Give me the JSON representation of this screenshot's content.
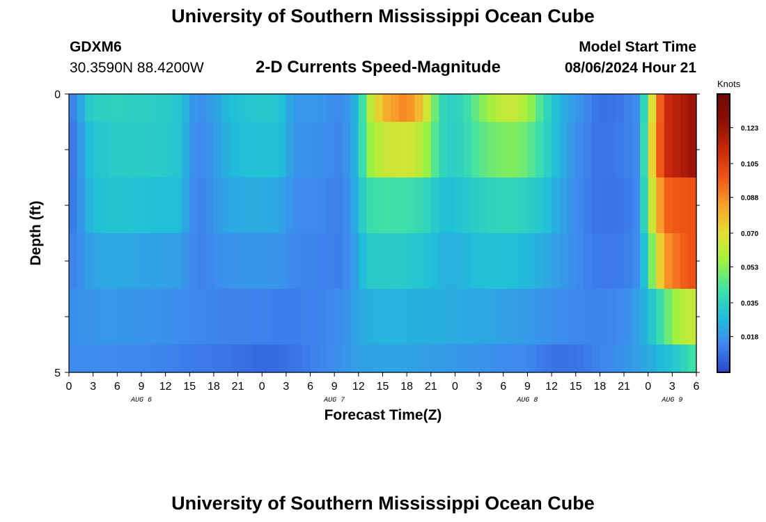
{
  "header": {
    "title": "University of Southern Mississippi Ocean Cube",
    "station": "GDXM6",
    "coordinates": "30.3590N  88.4200W",
    "subtitle": "2-D Currents Speed-Magnitude",
    "model_start_label": "Model Start Time",
    "model_start_value": "08/06/2024 Hour 21"
  },
  "footer": {
    "title": "University of Southern Mississippi Ocean Cube"
  },
  "colorbar": {
    "unit": "Knots",
    "ticks": [
      "0.123",
      "0.105",
      "0.088",
      "0.070",
      "0.053",
      "0.035",
      "0.018"
    ],
    "colors": [
      "#2b45c9",
      "#3f88ef",
      "#1fc0d8",
      "#40e1a6",
      "#9ff23e",
      "#e3df34",
      "#f9a32b",
      "#ef5416",
      "#c92a0b",
      "#8d0f05",
      "#6a0a05"
    ]
  },
  "chart_data": {
    "type": "heatmap",
    "title": "2-D Currents Speed-Magnitude",
    "xlabel": "Forecast Time(Z)",
    "ylabel": "Depth (ft)",
    "y_ticks": [
      "0",
      "5"
    ],
    "ylim": [
      0,
      5
    ],
    "x_tick_labels": [
      "0",
      "3",
      "6",
      "9",
      "12",
      "15",
      "18",
      "21",
      "0",
      "3",
      "6",
      "9",
      "12",
      "15",
      "18",
      "21",
      "0",
      "3",
      "6",
      "9",
      "12",
      "15",
      "18",
      "21",
      "0",
      "3",
      "6"
    ],
    "date_labels": [
      {
        "text": "AUG 6",
        "hour": 9
      },
      {
        "text": "AUG 7",
        "hour": 33
      },
      {
        "text": "AUG 8",
        "hour": 57
      },
      {
        "text": "AUG 9",
        "hour": 75
      }
    ],
    "hours_start": 0,
    "hours_end": 78,
    "value_range": [
      0.0,
      0.14
    ],
    "depth_layers": [
      {
        "depth_ft": 0.25,
        "points": [
          [
            0,
            0.012
          ],
          [
            1,
            0.014
          ],
          [
            2,
            0.03
          ],
          [
            3,
            0.034
          ],
          [
            6,
            0.035
          ],
          [
            9,
            0.034
          ],
          [
            12,
            0.033
          ],
          [
            14,
            0.03
          ],
          [
            15,
            0.02
          ],
          [
            16,
            0.015
          ],
          [
            17,
            0.017
          ],
          [
            19,
            0.023
          ],
          [
            20,
            0.028
          ],
          [
            23,
            0.031
          ],
          [
            26,
            0.031
          ],
          [
            27,
            0.025
          ],
          [
            28,
            0.018
          ],
          [
            31,
            0.018
          ],
          [
            34,
            0.014
          ],
          [
            36,
            0.028
          ],
          [
            37,
            0.055
          ],
          [
            39,
            0.08
          ],
          [
            42,
            0.09
          ],
          [
            44,
            0.075
          ],
          [
            46,
            0.04
          ],
          [
            47,
            0.034
          ],
          [
            49,
            0.037
          ],
          [
            51,
            0.05
          ],
          [
            53,
            0.06
          ],
          [
            55,
            0.065
          ],
          [
            57,
            0.058
          ],
          [
            59,
            0.04
          ],
          [
            61,
            0.025
          ],
          [
            63,
            0.018
          ],
          [
            65,
            0.012
          ],
          [
            66,
            0.009
          ],
          [
            68,
            0.01
          ],
          [
            70,
            0.013
          ],
          [
            71,
            0.018
          ],
          [
            72,
            0.055
          ],
          [
            74,
            0.11
          ],
          [
            76,
            0.118
          ],
          [
            78,
            0.125
          ]
        ]
      },
      {
        "depth_ft": 1.0,
        "points": [
          [
            0,
            0.01
          ],
          [
            1,
            0.012
          ],
          [
            2,
            0.025
          ],
          [
            3,
            0.03
          ],
          [
            6,
            0.033
          ],
          [
            9,
            0.033
          ],
          [
            12,
            0.032
          ],
          [
            14,
            0.03
          ],
          [
            15,
            0.018
          ],
          [
            16,
            0.014
          ],
          [
            17,
            0.015
          ],
          [
            19,
            0.022
          ],
          [
            20,
            0.026
          ],
          [
            23,
            0.029
          ],
          [
            26,
            0.029
          ],
          [
            27,
            0.024
          ],
          [
            28,
            0.017
          ],
          [
            31,
            0.016
          ],
          [
            34,
            0.013
          ],
          [
            36,
            0.028
          ],
          [
            37,
            0.052
          ],
          [
            39,
            0.064
          ],
          [
            42,
            0.067
          ],
          [
            44,
            0.06
          ],
          [
            46,
            0.04
          ],
          [
            47,
            0.033
          ],
          [
            49,
            0.036
          ],
          [
            51,
            0.045
          ],
          [
            53,
            0.05
          ],
          [
            55,
            0.052
          ],
          [
            57,
            0.048
          ],
          [
            59,
            0.037
          ],
          [
            61,
            0.025
          ],
          [
            63,
            0.016
          ],
          [
            65,
            0.011
          ],
          [
            66,
            0.01
          ],
          [
            68,
            0.011
          ],
          [
            70,
            0.013
          ],
          [
            71,
            0.017
          ],
          [
            72,
            0.06
          ],
          [
            74,
            0.11
          ],
          [
            76,
            0.118
          ],
          [
            78,
            0.125
          ]
        ]
      },
      {
        "depth_ft": 2.0,
        "points": [
          [
            0,
            0.01
          ],
          [
            1,
            0.013
          ],
          [
            2,
            0.022
          ],
          [
            3,
            0.028
          ],
          [
            6,
            0.03
          ],
          [
            9,
            0.029
          ],
          [
            12,
            0.028
          ],
          [
            14,
            0.027
          ],
          [
            15,
            0.016
          ],
          [
            16,
            0.013
          ],
          [
            17,
            0.014
          ],
          [
            19,
            0.02
          ],
          [
            20,
            0.022
          ],
          [
            23,
            0.023
          ],
          [
            26,
            0.022
          ],
          [
            27,
            0.019
          ],
          [
            28,
            0.015
          ],
          [
            31,
            0.014
          ],
          [
            34,
            0.012
          ],
          [
            36,
            0.026
          ],
          [
            37,
            0.04
          ],
          [
            39,
            0.042
          ],
          [
            42,
            0.041
          ],
          [
            44,
            0.038
          ],
          [
            46,
            0.03
          ],
          [
            47,
            0.028
          ],
          [
            49,
            0.03
          ],
          [
            51,
            0.034
          ],
          [
            53,
            0.036
          ],
          [
            55,
            0.037
          ],
          [
            57,
            0.034
          ],
          [
            59,
            0.03
          ],
          [
            61,
            0.022
          ],
          [
            63,
            0.015
          ],
          [
            65,
            0.011
          ],
          [
            66,
            0.01
          ],
          [
            68,
            0.01
          ],
          [
            70,
            0.012
          ],
          [
            71,
            0.016
          ],
          [
            72,
            0.055
          ],
          [
            74,
            0.095
          ],
          [
            76,
            0.098
          ],
          [
            78,
            0.1
          ]
        ]
      },
      {
        "depth_ft": 3.0,
        "points": [
          [
            0,
            0.012
          ],
          [
            1,
            0.014
          ],
          [
            2,
            0.018
          ],
          [
            3,
            0.021
          ],
          [
            6,
            0.022
          ],
          [
            9,
            0.021
          ],
          [
            12,
            0.02
          ],
          [
            14,
            0.019
          ],
          [
            15,
            0.015
          ],
          [
            16,
            0.013
          ],
          [
            17,
            0.013
          ],
          [
            19,
            0.016
          ],
          [
            20,
            0.017
          ],
          [
            23,
            0.018
          ],
          [
            26,
            0.017
          ],
          [
            27,
            0.016
          ],
          [
            28,
            0.014
          ],
          [
            31,
            0.013
          ],
          [
            34,
            0.012
          ],
          [
            36,
            0.022
          ],
          [
            37,
            0.032
          ],
          [
            39,
            0.033
          ],
          [
            42,
            0.032
          ],
          [
            44,
            0.03
          ],
          [
            46,
            0.026
          ],
          [
            47,
            0.024
          ],
          [
            49,
            0.025
          ],
          [
            51,
            0.028
          ],
          [
            53,
            0.029
          ],
          [
            55,
            0.028
          ],
          [
            57,
            0.026
          ],
          [
            59,
            0.023
          ],
          [
            61,
            0.019
          ],
          [
            63,
            0.015
          ],
          [
            65,
            0.012
          ],
          [
            66,
            0.011
          ],
          [
            68,
            0.011
          ],
          [
            70,
            0.013
          ],
          [
            71,
            0.017
          ],
          [
            72,
            0.04
          ],
          [
            74,
            0.085
          ],
          [
            76,
            0.095
          ],
          [
            78,
            0.1
          ]
        ]
      },
      {
        "depth_ft": 4.0,
        "points": [
          [
            0,
            0.016
          ],
          [
            2,
            0.017
          ],
          [
            4,
            0.018
          ],
          [
            6,
            0.018
          ],
          [
            9,
            0.017
          ],
          [
            12,
            0.016
          ],
          [
            14,
            0.015
          ],
          [
            16,
            0.014
          ],
          [
            18,
            0.013
          ],
          [
            20,
            0.013
          ],
          [
            23,
            0.013
          ],
          [
            26,
            0.012
          ],
          [
            28,
            0.012
          ],
          [
            31,
            0.013
          ],
          [
            34,
            0.015
          ],
          [
            36,
            0.022
          ],
          [
            38,
            0.025
          ],
          [
            41,
            0.025
          ],
          [
            44,
            0.024
          ],
          [
            47,
            0.023
          ],
          [
            50,
            0.022
          ],
          [
            53,
            0.021
          ],
          [
            56,
            0.019
          ],
          [
            59,
            0.017
          ],
          [
            61,
            0.015
          ],
          [
            63,
            0.014
          ],
          [
            65,
            0.013
          ],
          [
            68,
            0.014
          ],
          [
            70,
            0.017
          ],
          [
            72,
            0.027
          ],
          [
            74,
            0.045
          ],
          [
            76,
            0.06
          ],
          [
            78,
            0.065
          ]
        ]
      },
      {
        "depth_ft": 4.75,
        "points": [
          [
            0,
            0.014
          ],
          [
            3,
            0.015
          ],
          [
            6,
            0.014
          ],
          [
            9,
            0.014
          ],
          [
            12,
            0.013
          ],
          [
            14,
            0.012
          ],
          [
            17,
            0.011
          ],
          [
            20,
            0.01
          ],
          [
            23,
            0.008
          ],
          [
            26,
            0.008
          ],
          [
            28,
            0.01
          ],
          [
            31,
            0.013
          ],
          [
            34,
            0.017
          ],
          [
            36,
            0.02
          ],
          [
            39,
            0.021
          ],
          [
            42,
            0.021
          ],
          [
            45,
            0.019
          ],
          [
            48,
            0.018
          ],
          [
            51,
            0.017
          ],
          [
            54,
            0.015
          ],
          [
            57,
            0.014
          ],
          [
            59,
            0.011
          ],
          [
            61,
            0.009
          ],
          [
            63,
            0.01
          ],
          [
            66,
            0.013
          ],
          [
            69,
            0.017
          ],
          [
            71,
            0.02
          ],
          [
            73,
            0.025
          ],
          [
            75,
            0.03
          ],
          [
            77,
            0.038
          ],
          [
            78,
            0.045
          ]
        ]
      }
    ]
  }
}
